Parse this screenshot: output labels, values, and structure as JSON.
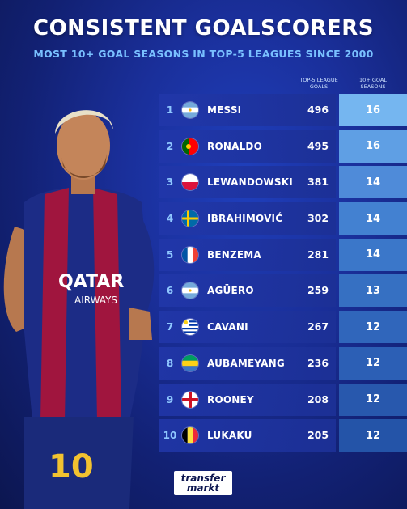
{
  "header": {
    "title": "CONSISTENT GOALSCORERS",
    "subtitle": "MOST 10+ GOAL SEASONS IN TOP-5 LEAGUES SINCE 2000"
  },
  "columns": {
    "goals_label_1": "TOP-5 LEAGUE",
    "goals_label_2": "GOALS",
    "seasons_label_1": "10+ GOAL",
    "seasons_label_2": "SEASONS"
  },
  "colors": {
    "seasons_gradient": [
      "#75b6f0",
      "#5f9fe4",
      "#4f8bd9",
      "#4381d1",
      "#3b77c9",
      "#3670c2",
      "#3066bb",
      "#2c5fb5",
      "#2858ad",
      "#2454a8"
    ]
  },
  "rows": [
    {
      "rank": "1",
      "flag": "argentina-flag-icon",
      "name": "MESSI",
      "goals": "496",
      "seasons": "16"
    },
    {
      "rank": "2",
      "flag": "portugal-flag-icon",
      "name": "RONALDO",
      "goals": "495",
      "seasons": "16"
    },
    {
      "rank": "3",
      "flag": "poland-flag-icon",
      "name": "LEWANDOWSKI",
      "goals": "381",
      "seasons": "14"
    },
    {
      "rank": "4",
      "flag": "sweden-flag-icon",
      "name": "IBRAHIMOVIĆ",
      "goals": "302",
      "seasons": "14"
    },
    {
      "rank": "5",
      "flag": "france-flag-icon",
      "name": "BENZEMA",
      "goals": "281",
      "seasons": "14"
    },
    {
      "rank": "6",
      "flag": "argentina-flag-icon",
      "name": "AGÜERO",
      "goals": "259",
      "seasons": "13"
    },
    {
      "rank": "7",
      "flag": "uruguay-flag-icon",
      "name": "CAVANI",
      "goals": "267",
      "seasons": "12"
    },
    {
      "rank": "8",
      "flag": "gabon-flag-icon",
      "name": "AUBAMEYANG",
      "goals": "236",
      "seasons": "12"
    },
    {
      "rank": "9",
      "flag": "england-flag-icon",
      "name": "ROONEY",
      "goals": "208",
      "seasons": "12"
    },
    {
      "rank": "10",
      "flag": "belgium-flag-icon",
      "name": "LUKAKU",
      "goals": "205",
      "seasons": "12"
    }
  ],
  "logo": {
    "line1": "transfer",
    "line2": "markt"
  }
}
